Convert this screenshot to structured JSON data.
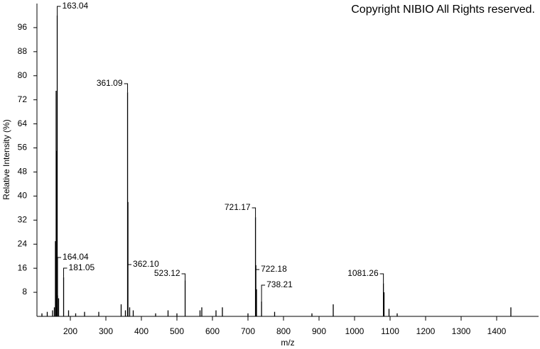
{
  "chart_data": {
    "type": "spectrum",
    "annotation": "Copyright NIBIO All Rights reserved.",
    "x_label": "m/z",
    "y_label": "Relative Intensity (%)",
    "x": [
      120,
      135,
      150,
      155,
      158,
      160,
      161,
      163.04,
      164.04,
      167,
      181.05,
      195,
      215,
      240,
      280,
      343,
      355,
      361.09,
      362.1,
      367,
      377,
      440,
      475,
      500,
      523.12,
      565,
      570,
      610,
      628,
      700,
      721.17,
      722.18,
      724,
      738.21,
      775,
      880,
      940,
      1081.26,
      1083,
      1097,
      1120,
      1440
    ],
    "values": [
      1,
      1.5,
      2,
      3,
      25,
      75,
      55,
      100,
      7,
      6,
      13,
      2,
      1,
      1.5,
      1.5,
      4,
      2,
      74.5,
      38,
      3,
      2,
      1,
      2,
      1,
      12,
      2,
      3,
      2,
      3,
      1,
      33,
      17,
      9,
      5,
      1.5,
      1,
      4,
      11,
      8,
      2.5,
      1,
      3
    ],
    "value_labels": [
      null,
      null,
      null,
      null,
      null,
      null,
      null,
      "163.04",
      "164.04",
      null,
      "181.05",
      null,
      null,
      null,
      null,
      null,
      null,
      "361.09",
      "362.10",
      null,
      null,
      null,
      null,
      null,
      "523.12",
      null,
      null,
      null,
      null,
      null,
      "721.17",
      "722.18",
      null,
      "738.21",
      null,
      null,
      null,
      "1081.26",
      null,
      null,
      null,
      null
    ],
    "color": "#000000",
    "xlim": [
      106,
      1518
    ],
    "xticks": [
      200,
      300,
      400,
      500,
      600,
      700,
      800,
      900,
      1000,
      1100,
      1200,
      1300,
      1400
    ],
    "ylim": [
      0,
      104
    ],
    "yticks": [
      8,
      16,
      24,
      32,
      40,
      48,
      56,
      64,
      72,
      80,
      88,
      96
    ]
  }
}
